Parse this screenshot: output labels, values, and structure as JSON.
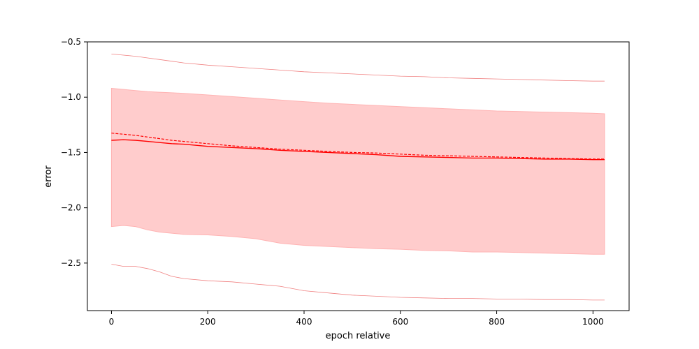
{
  "chart_data": {
    "type": "line",
    "title": "",
    "xlabel": "epoch relative",
    "ylabel": "error",
    "xlim": [
      -50,
      1075
    ],
    "ylim": [
      -2.93,
      -0.5
    ],
    "xticks": [
      0,
      200,
      400,
      600,
      800,
      1000
    ],
    "yticks": [
      -2.5,
      -2.0,
      -1.5,
      -1.0,
      -0.5
    ],
    "xtick_labels": [
      "0",
      "200",
      "400",
      "600",
      "800",
      "1000"
    ],
    "ytick_labels": [
      "−2.5",
      "−2.0",
      "−1.5",
      "−1.0",
      "−0.5"
    ],
    "grid": false,
    "colors": {
      "line": "#ff0000",
      "band_fill": "#ffcccc",
      "band_edge": "#ffb3b3",
      "outer": "#f08080"
    },
    "x": [
      0,
      25,
      50,
      75,
      100,
      125,
      150,
      200,
      250,
      300,
      350,
      400,
      450,
      500,
      550,
      600,
      650,
      700,
      750,
      800,
      850,
      900,
      950,
      1000,
      1024
    ],
    "series": [
      {
        "role": "mean",
        "style": "solid",
        "values": [
          -1.39,
          -1.385,
          -1.39,
          -1.4,
          -1.41,
          -1.42,
          -1.425,
          -1.445,
          -1.455,
          -1.465,
          -1.48,
          -1.49,
          -1.5,
          -1.51,
          -1.52,
          -1.535,
          -1.54,
          -1.545,
          -1.55,
          -1.55,
          -1.555,
          -1.56,
          -1.56,
          -1.565,
          -1.565
        ]
      },
      {
        "role": "reference",
        "style": "dashed",
        "values": [
          -1.325,
          -1.335,
          -1.345,
          -1.36,
          -1.375,
          -1.39,
          -1.4,
          -1.42,
          -1.44,
          -1.455,
          -1.47,
          -1.48,
          -1.49,
          -1.5,
          -1.505,
          -1.515,
          -1.525,
          -1.53,
          -1.535,
          -1.54,
          -1.545,
          -1.55,
          -1.555,
          -1.56,
          -1.56
        ]
      },
      {
        "role": "band_upper",
        "style": "fill",
        "values": [
          -0.92,
          -0.93,
          -0.94,
          -0.95,
          -0.955,
          -0.96,
          -0.965,
          -0.98,
          -0.995,
          -1.01,
          -1.025,
          -1.04,
          -1.055,
          -1.065,
          -1.075,
          -1.085,
          -1.095,
          -1.105,
          -1.115,
          -1.125,
          -1.13,
          -1.135,
          -1.14,
          -1.145,
          -1.15
        ]
      },
      {
        "role": "band_lower",
        "style": "fill",
        "values": [
          -2.17,
          -2.16,
          -2.17,
          -2.2,
          -2.22,
          -2.23,
          -2.24,
          -2.245,
          -2.26,
          -2.28,
          -2.32,
          -2.34,
          -2.35,
          -2.36,
          -2.37,
          -2.375,
          -2.385,
          -2.39,
          -2.4,
          -2.4,
          -2.405,
          -2.41,
          -2.415,
          -2.42,
          -2.42
        ]
      },
      {
        "role": "outer_upper",
        "style": "thin",
        "values": [
          -0.61,
          -0.62,
          -0.63,
          -0.645,
          -0.66,
          -0.675,
          -0.69,
          -0.71,
          -0.725,
          -0.74,
          -0.755,
          -0.77,
          -0.78,
          -0.79,
          -0.8,
          -0.81,
          -0.815,
          -0.825,
          -0.83,
          -0.835,
          -0.84,
          -0.845,
          -0.85,
          -0.855,
          -0.855
        ]
      },
      {
        "role": "outer_lower",
        "style": "thin",
        "values": [
          -2.51,
          -2.53,
          -2.53,
          -2.55,
          -2.58,
          -2.62,
          -2.64,
          -2.66,
          -2.67,
          -2.69,
          -2.71,
          -2.75,
          -2.77,
          -2.79,
          -2.8,
          -2.81,
          -2.815,
          -2.82,
          -2.82,
          -2.825,
          -2.825,
          -2.83,
          -2.83,
          -2.835,
          -2.835
        ]
      }
    ]
  }
}
